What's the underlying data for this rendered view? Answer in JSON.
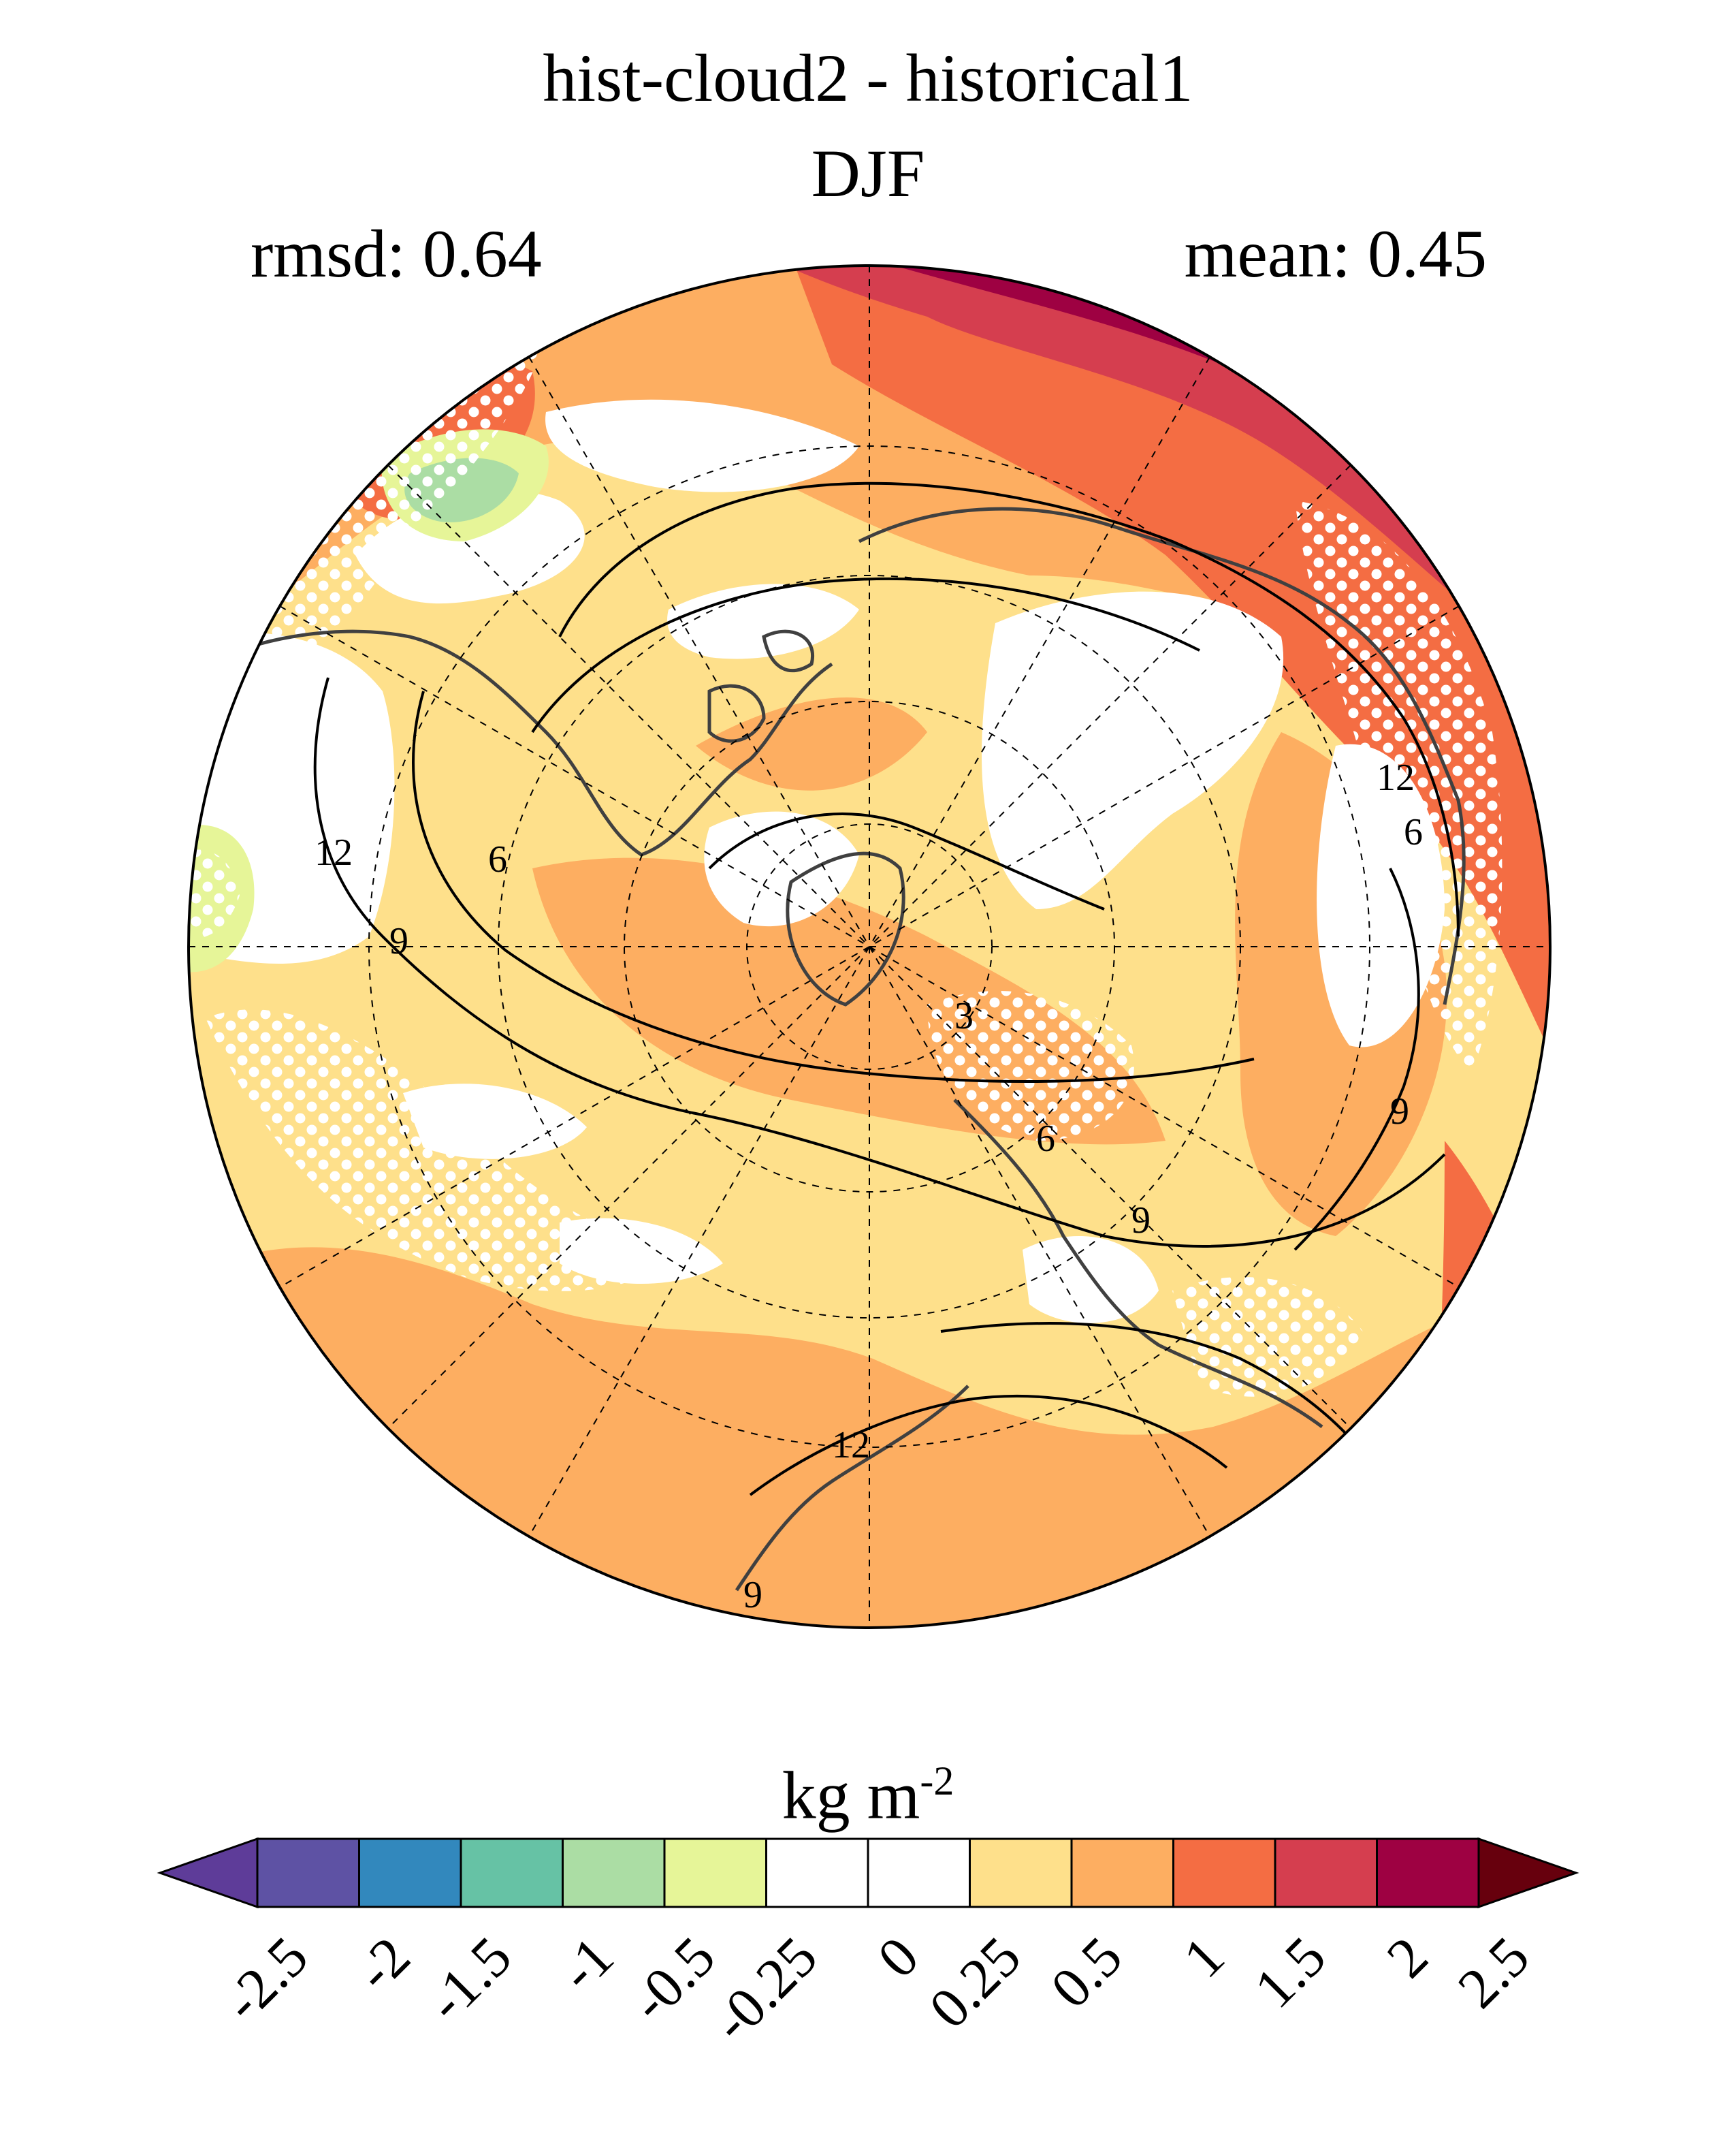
{
  "header": {
    "title": "hist-cloud2 - historical1",
    "season": "DJF",
    "rmsd_label": "rmsd: 0.64",
    "mean_label": "mean: 0.45"
  },
  "map": {
    "projection": "north polar stereographic",
    "field": "cloud water path difference",
    "contour_labels": [
      "12",
      "9",
      "6",
      "3",
      "6",
      "9",
      "12",
      "6",
      "9",
      "12",
      "9"
    ],
    "stippling": "white dots mark significant regions"
  },
  "colorbar": {
    "units_base": "kg m",
    "units_exp": "-2",
    "levels": [
      "-2.5",
      "-2",
      "-1.5",
      "-1",
      "-0.5",
      "-0.25",
      "0",
      "0.25",
      "0.5",
      "1",
      "1.5",
      "2",
      "2.5"
    ],
    "colors": [
      "#5e3c99",
      "#5e52a4",
      "#3288bd",
      "#66c2a5",
      "#abdda4",
      "#e6f598",
      "#ffffff",
      "#ffffff",
      "#fee08b",
      "#fdae61",
      "#f46d43",
      "#d53e4f",
      "#9e0142",
      "#67000d"
    ]
  }
}
